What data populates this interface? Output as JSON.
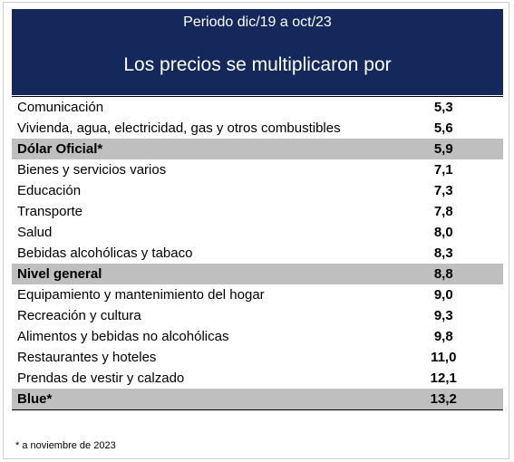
{
  "header": {
    "period": "Periodo dic/19 a oct/23",
    "title": "Los precios se multiplicaron por"
  },
  "table": {
    "rows": [
      {
        "label": "Comunicación",
        "value": "5,3"
      },
      {
        "label": "Vivienda, agua, electricidad, gas y otros combustibles",
        "value": "5,6"
      },
      {
        "label": "Dólar Oficial*",
        "value": "5,9",
        "highlight": true
      },
      {
        "label": "Bienes y servicios varios",
        "value": "7,1"
      },
      {
        "label": "Educación",
        "value": "7,3"
      },
      {
        "label": "Transporte",
        "value": "7,8"
      },
      {
        "label": "Salud",
        "value": "8,0"
      },
      {
        "label": "Bebidas alcohólicas y tabaco",
        "value": "8,3"
      },
      {
        "label": "Nivel general",
        "value": "8,8",
        "highlight": true
      },
      {
        "label": "Equipamiento y mantenimiento del hogar",
        "value": "9,0"
      },
      {
        "label": "Recreación y cultura",
        "value": "9,3"
      },
      {
        "label": "Alimentos y bebidas no alcohólicas",
        "value": "9,8"
      },
      {
        "label": "Restaurantes y hoteles",
        "value": "11,0"
      },
      {
        "label": "Prendas de vestir y calzado",
        "value": "12,1"
      },
      {
        "label": "Blue*",
        "value": "13,2",
        "highlight": true
      }
    ]
  },
  "footnote": "* a noviembre de 2023"
}
